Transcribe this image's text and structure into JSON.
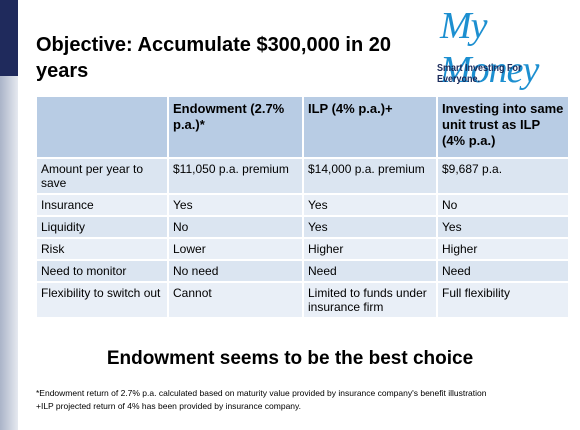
{
  "header": {
    "title": "Objective: Accumulate $300,000 in 20 years"
  },
  "logo": {
    "name": "My Money",
    "tagline": "Smart Investing For Everyone."
  },
  "table": {
    "columns": [
      "",
      "Endowment (2.7% p.a.)*",
      "ILP (4% p.a.)+",
      "Investing into same unit trust as ILP (4% p.a.)"
    ],
    "rows": [
      [
        "Amount per year to save",
        "$11,050 p.a. premium",
        "$14,000 p.a. premium",
        "$9,687 p.a."
      ],
      [
        "Insurance",
        "Yes",
        "Yes",
        "No"
      ],
      [
        "Liquidity",
        "No",
        "Yes",
        "Yes"
      ],
      [
        "Risk",
        "Lower",
        "Higher",
        "Higher"
      ],
      [
        "Need to monitor",
        "No need",
        "Need",
        "Need"
      ],
      [
        "Flexibility to switch out",
        "Cannot",
        "Limited to funds under insurance firm",
        "Full flexibility"
      ]
    ]
  },
  "conclusion": "Endowment seems to be the best choice",
  "footnotes": [
    "*Endowment return of 2.7% p.a. calculated based on maturity value provided by insurance company's benefit illustration",
    "+ILP projected return of 4% has been provided by insurance company."
  ]
}
